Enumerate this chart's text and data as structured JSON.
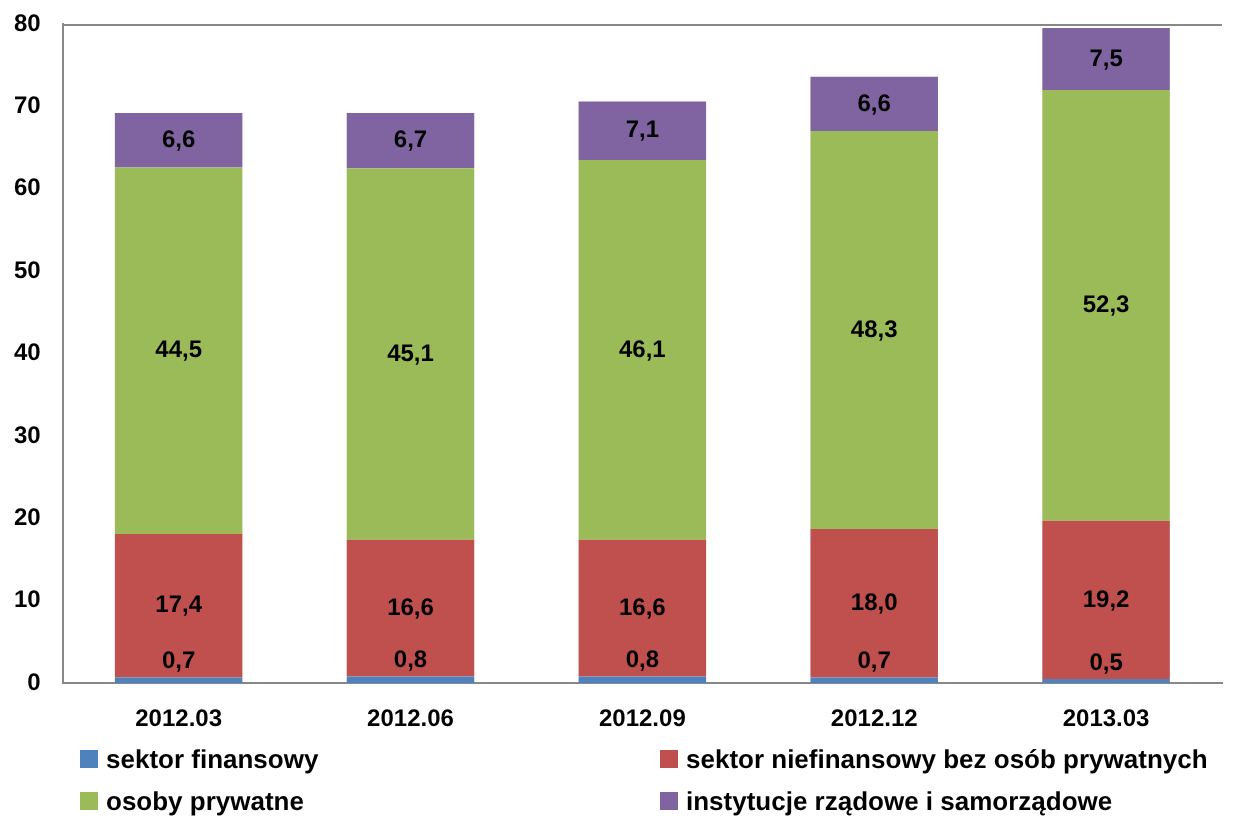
{
  "chart_data": {
    "type": "bar",
    "stacked": true,
    "categories": [
      "2012.03",
      "2012.06",
      "2012.09",
      "2012.12",
      "2013.03"
    ],
    "series": [
      {
        "name": "sektor finansowy",
        "color": "#4f81bd",
        "values": [
          0.7,
          0.8,
          0.8,
          0.7,
          0.5
        ],
        "value_labels": [
          "0,7",
          "0,8",
          "0,8",
          "0,7",
          "0,5"
        ]
      },
      {
        "name": "sektor niefinansowy bez osób prywatnych",
        "color": "#c0504d",
        "values": [
          17.4,
          16.6,
          16.6,
          18.0,
          19.2
        ],
        "value_labels": [
          "17,4",
          "16,6",
          "16,6",
          "18,0",
          "19,2"
        ]
      },
      {
        "name": "osoby prywatne",
        "color": "#9bbb59",
        "values": [
          44.5,
          45.1,
          46.1,
          48.3,
          52.3
        ],
        "value_labels": [
          "44,5",
          "45,1",
          "46,1",
          "48,3",
          "52,3"
        ]
      },
      {
        "name": "instytucje rządowe i samorządowe",
        "color": "#8064a2",
        "values": [
          6.6,
          6.7,
          7.1,
          6.6,
          7.5
        ],
        "value_labels": [
          "6,6",
          "6,7",
          "7,1",
          "6,6",
          "7,5"
        ]
      }
    ],
    "ylim": [
      0,
      80
    ],
    "yticks": [
      0,
      10,
      20,
      30,
      40,
      50,
      60,
      70,
      80
    ],
    "grid": false,
    "legend": "bottom"
  }
}
